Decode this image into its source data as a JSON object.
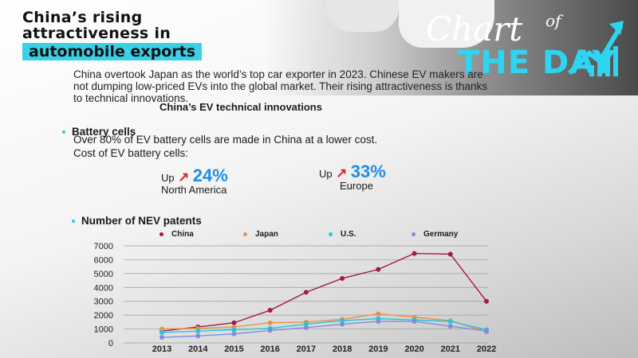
{
  "title": {
    "line1": "China’s rising",
    "line2": "attractiveness in",
    "highlight": "automobile exports"
  },
  "logo": {
    "chart": "Chart",
    "of": "of",
    "the_day": "THE DAY"
  },
  "intro": "China overtook Japan as the world’s top car exporter in 2023. Chinese EV makers are not dumping low-priced EVs into the global market. Their rising attractiveness is thanks to technical innovations.",
  "subhead": "China’s EV technical innovations",
  "battery": {
    "heading": "Battery cells",
    "line1": "Over 80% of EV battery cells are made in China at a lower cost.",
    "line2": "Cost of EV battery cells:",
    "stats": [
      {
        "up": "Up",
        "pct": "24%",
        "region": "North America"
      },
      {
        "up": "Up",
        "pct": "33%",
        "region": "Europe"
      }
    ]
  },
  "colors": {
    "accent": "#3ad0e6",
    "china": "#a3184d",
    "japan": "#e9914a",
    "us": "#23c6dc",
    "germany": "#7f8ce0"
  },
  "chart_data": {
    "type": "line",
    "title": "Number of NEV patents",
    "categories": [
      "2013",
      "2014",
      "2015",
      "2016",
      "2017",
      "2018",
      "2019",
      "2020",
      "2021",
      "2022"
    ],
    "series": [
      {
        "name": "China",
        "values": [
          850,
          1150,
          1450,
          2350,
          3650,
          4650,
          5300,
          6450,
          6400,
          3000
        ]
      },
      {
        "name": "Japan",
        "values": [
          1000,
          1050,
          1150,
          1450,
          1500,
          1700,
          2100,
          1850,
          1600,
          800
        ]
      },
      {
        "name": "U.S.",
        "values": [
          750,
          850,
          950,
          1050,
          1350,
          1600,
          1750,
          1650,
          1550,
          950
        ]
      },
      {
        "name": "Germany",
        "values": [
          400,
          500,
          650,
          900,
          1100,
          1350,
          1550,
          1550,
          1200,
          850
        ]
      }
    ],
    "ylim": [
      0,
      7000
    ],
    "yticks": [
      0,
      1000,
      2000,
      3000,
      4000,
      5000,
      6000,
      7000
    ],
    "grid": true,
    "legend": "top"
  }
}
